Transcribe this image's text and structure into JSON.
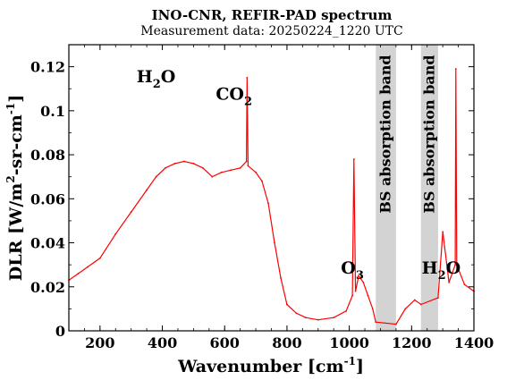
{
  "chart_data": {
    "type": "line",
    "title": "INO-CNR, REFIR-PAD spectrum",
    "subtitle": "Measurement data: 20250224_1220 UTC",
    "xlabel": {
      "main": "Wavenumber [cm",
      "sup": "-1",
      "end": "]"
    },
    "ylabel": {
      "a": "DLR [W/m",
      "sup1": "2",
      "b": "-sr-cm",
      "sup2": "-1",
      "c": "]"
    },
    "xlim": [
      100,
      1400
    ],
    "ylim": [
      0,
      0.13
    ],
    "x_ticks": [
      200,
      400,
      600,
      800,
      1000,
      1200,
      1400
    ],
    "y_ticks": [
      0,
      0.02,
      0.04,
      0.06,
      0.08,
      0.1,
      0.12
    ],
    "y_tick_labels": [
      "0",
      "0.02",
      "0.04",
      "0.06",
      "0.08",
      "0.1",
      "0.12"
    ],
    "grid": false,
    "color": "#ff0000",
    "band_color": "#d3d3d3",
    "shaded_bands": [
      {
        "x": [
          1085,
          1150
        ],
        "label": "BS absorption band"
      },
      {
        "x": [
          1230,
          1285
        ],
        "label": "BS absorption band"
      }
    ],
    "annotations": [
      {
        "base": "H",
        "sub": "2",
        "tail": "O",
        "x": 380,
        "y": 0.113
      },
      {
        "base": "CO",
        "sub": "2",
        "tail": "",
        "x": 630,
        "y": 0.105
      },
      {
        "base": "O",
        "sub": "3",
        "tail": "",
        "x": 1010,
        "y": 0.026
      },
      {
        "base": "H",
        "sub": "2",
        "tail": "O",
        "x": 1295,
        "y": 0.026
      }
    ],
    "series": [
      {
        "x": [
          100,
          130,
          160,
          200,
          250,
          300,
          350,
          380,
          410,
          440,
          470,
          500,
          530,
          560,
          590,
          620,
          650,
          670,
          672,
          675,
          700,
          720,
          740,
          760,
          780,
          800,
          830,
          860,
          900,
          950,
          990,
          1010,
          1015,
          1020,
          1030,
          1045,
          1060,
          1075,
          1085,
          1150,
          1180,
          1210,
          1230,
          1285,
          1300,
          1320,
          1340,
          1342,
          1345,
          1370,
          1400
        ],
        "y": [
          0.023,
          0.026,
          0.029,
          0.033,
          0.044,
          0.054,
          0.064,
          0.07,
          0.074,
          0.076,
          0.077,
          0.076,
          0.074,
          0.07,
          0.072,
          0.073,
          0.074,
          0.077,
          0.115,
          0.075,
          0.072,
          0.068,
          0.058,
          0.04,
          0.024,
          0.012,
          0.008,
          0.006,
          0.005,
          0.006,
          0.009,
          0.016,
          0.078,
          0.018,
          0.025,
          0.022,
          0.016,
          0.01,
          0.004,
          0.003,
          0.01,
          0.014,
          0.012,
          0.015,
          0.045,
          0.022,
          0.03,
          0.119,
          0.03,
          0.021,
          0.018
        ]
      }
    ]
  }
}
